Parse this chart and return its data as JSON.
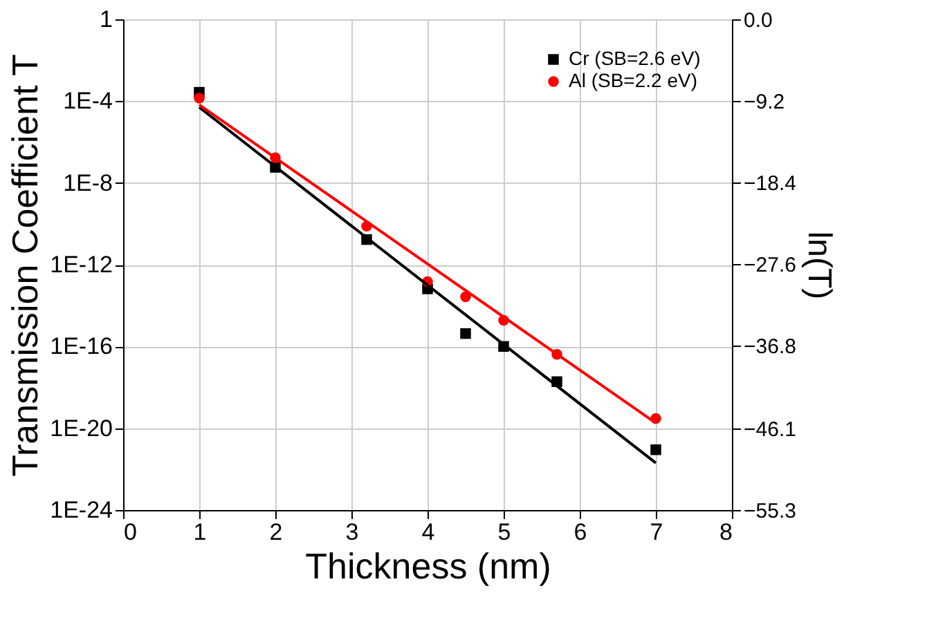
{
  "chart_data": {
    "type": "scatter",
    "xlabel": "Thickness (nm)",
    "ylabel": "Transmission Coefficient T",
    "y2label": "ln(T)",
    "xlim": [
      0,
      8
    ],
    "xticks": [
      0,
      1,
      2,
      3,
      4,
      5,
      6,
      7,
      8
    ],
    "ylim": [
      1e-24,
      1
    ],
    "yticks": [
      {
        "value": 1e-24,
        "label": "1E-24"
      },
      {
        "value": 1e-20,
        "label": "1E-20"
      },
      {
        "value": 1e-16,
        "label": "1E-16"
      },
      {
        "value": 1e-12,
        "label": "1E-12"
      },
      {
        "value": 1e-08,
        "label": "1E-8"
      },
      {
        "value": 0.0001,
        "label": "1E-4"
      },
      1
    ],
    "y2lim": [
      -55.3,
      0
    ],
    "y2ticks": [
      -55.3,
      -46.1,
      -36.8,
      -27.6,
      -18.4,
      -9.2,
      {
        "value": 0,
        "label": "0.0"
      }
    ],
    "log": true,
    "grid": true,
    "legend": "top right",
    "series": [
      {
        "name": "Cr (SB=2.6 eV)",
        "marker": "square",
        "color": "#000000",
        "x": [
          1,
          2,
          3.2,
          4,
          4.5,
          5,
          5.7,
          7
        ],
        "values": [
          0.00027,
          5.8e-08,
          1.7e-11,
          6.6e-14,
          4.3e-16,
          1e-16,
          1.9e-18,
          8.9e-22
        ]
      },
      {
        "name": "Al (SB=2.2 eV)",
        "marker": "circle",
        "color": "#ff0000",
        "x": [
          1,
          2,
          3.2,
          4,
          4.5,
          5,
          5.7,
          7
        ],
        "values": [
          0.00014,
          1.7e-07,
          7.6e-11,
          1.5e-13,
          2.7e-14,
          1.9e-15,
          4.1e-17,
          3e-20
        ]
      },
      {
        "type": "line",
        "color": "#000000",
        "x": [
          1,
          7
        ],
        "values": [
          5e-05,
          2e-22
        ]
      },
      {
        "type": "line",
        "color": "#ff0000",
        "x": [
          1,
          7
        ],
        "values": [
          6.6e-05,
          1.8e-20
        ]
      }
    ]
  }
}
